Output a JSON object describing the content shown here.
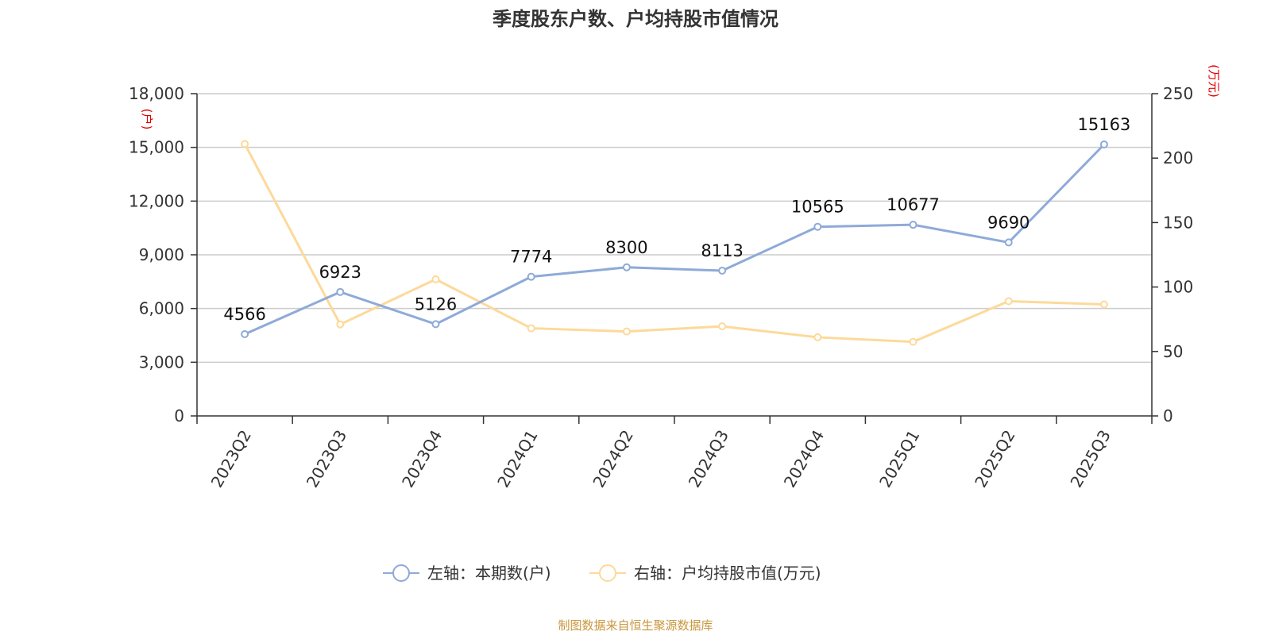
{
  "chart_data": {
    "type": "line",
    "title": "季度股东户数、户均持股市值情况",
    "categories": [
      "2023Q2",
      "2023Q3",
      "2023Q4",
      "2024Q1",
      "2024Q2",
      "2024Q3",
      "2024Q4",
      "2025Q1",
      "2025Q2",
      "2025Q3"
    ],
    "left_axis": {
      "unit": "(户)",
      "ylim": [
        0,
        18000
      ],
      "ticks": [
        "0",
        "3,000",
        "6,000",
        "9,000",
        "12,000",
        "15,000",
        "18,000"
      ]
    },
    "right_axis": {
      "unit": "(万元)",
      "ylim": [
        0,
        250
      ],
      "ticks": [
        "0",
        "50",
        "100",
        "150",
        "200",
        "250"
      ]
    },
    "grid": true,
    "legend_position": "bottom",
    "series": [
      {
        "name": "左轴：本期数(户)",
        "axis": "left",
        "color": "#8eaad8",
        "values": [
          4566,
          6923,
          5126,
          7774,
          8300,
          8113,
          10565,
          10677,
          9690,
          15163
        ],
        "labels": [
          "4566",
          "6923",
          "5126",
          "7774",
          "8300",
          "8113",
          "10565",
          "10677",
          "9690",
          "15163"
        ]
      },
      {
        "name": "右轴：户均持股市值(万元)",
        "axis": "right",
        "color": "#fdd99a",
        "values": [
          211,
          71,
          106,
          68,
          65.5,
          69.5,
          61,
          57.5,
          89,
          86.5
        ]
      }
    ],
    "source": "制图数据来自恒生聚源数据库"
  }
}
